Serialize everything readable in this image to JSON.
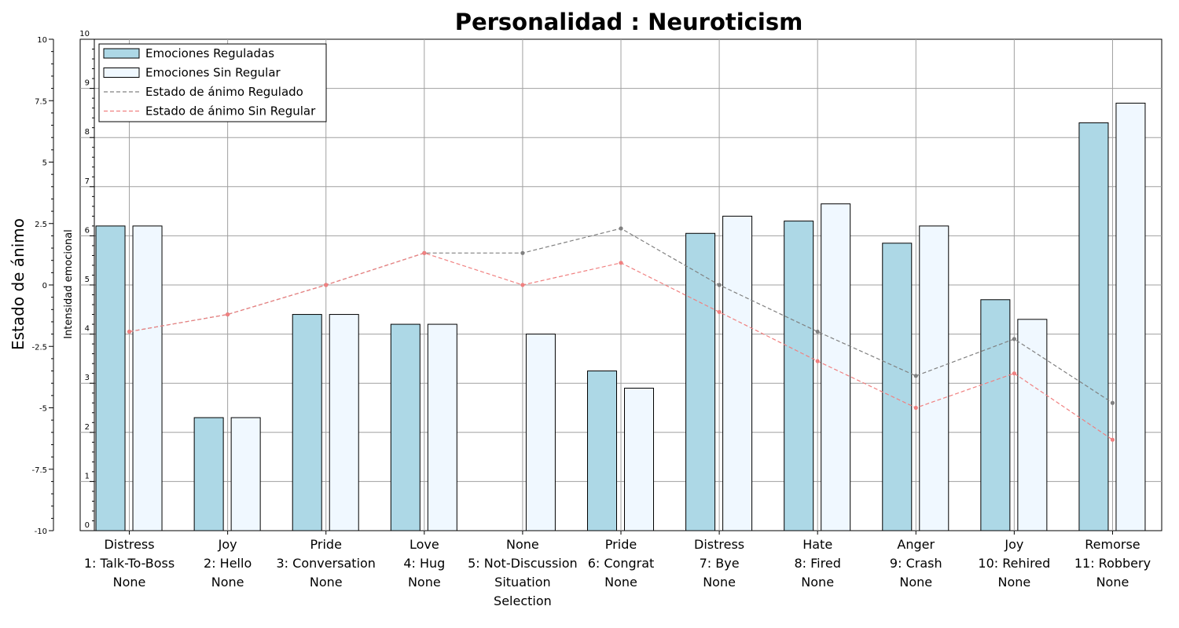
{
  "chart_data": {
    "type": "bar",
    "title": "Personalidad : Neuroticism",
    "left_axis_label": "Estado de ánimo",
    "inner_axis_label": "Intensidad emocional",
    "mood_axis": {
      "ylim": [
        -10,
        10
      ],
      "ticks": [
        "10",
        "7.5",
        "5",
        "2.5",
        "0",
        "-2.5",
        "-5",
        "-7.5",
        "-10"
      ]
    },
    "intensity_axis": {
      "ylim": [
        0,
        10
      ],
      "ticks": [
        "10",
        "9",
        "8",
        "7",
        "6",
        "5",
        "4",
        "3",
        "2",
        "1",
        "0"
      ]
    },
    "grid": true,
    "legend_position": "top-left",
    "categories": [
      [
        "Distress",
        "1: Talk-To-Boss",
        "None"
      ],
      [
        "Joy",
        "2: Hello",
        "None"
      ],
      [
        "Pride",
        "3: Conversation",
        "None"
      ],
      [
        "Love",
        "4: Hug",
        "None"
      ],
      [
        "None",
        "5: Not-Discussion",
        "Situation",
        "Selection"
      ],
      [
        "Pride",
        "6: Congrat",
        "None"
      ],
      [
        "Distress",
        "7: Bye",
        "None"
      ],
      [
        "Hate",
        "8: Fired",
        "None"
      ],
      [
        "Anger",
        "9: Crash",
        "None"
      ],
      [
        "Joy",
        "10: Rehired",
        "None"
      ],
      [
        "Remorse",
        "11: Robbery",
        "None"
      ]
    ],
    "bar_series": [
      {
        "name": "Emociones Reguladas",
        "color": "#add8e6",
        "values": [
          6.2,
          2.3,
          4.4,
          4.2,
          0,
          3.25,
          6.05,
          6.3,
          5.85,
          4.7,
          8.3
        ]
      },
      {
        "name": "Emociones Sin Regular",
        "color": "#f0f8ff",
        "values": [
          6.2,
          2.3,
          4.4,
          4.2,
          4.0,
          2.9,
          6.4,
          6.65,
          6.2,
          4.3,
          8.7
        ]
      }
    ],
    "line_series": [
      {
        "name": "Estado de ánimo Regulado",
        "color": "#808080",
        "values": [
          -1.9,
          -1.2,
          0.0,
          1.3,
          1.3,
          2.3,
          0.0,
          -1.9,
          -3.7,
          -2.2,
          -4.8
        ]
      },
      {
        "name": "Estado de ánimo Sin Regular",
        "color": "#f08080",
        "values": [
          -1.9,
          -1.2,
          0.0,
          1.3,
          0.0,
          0.9,
          -1.1,
          -3.1,
          -5.0,
          -3.6,
          -6.3
        ]
      }
    ]
  }
}
